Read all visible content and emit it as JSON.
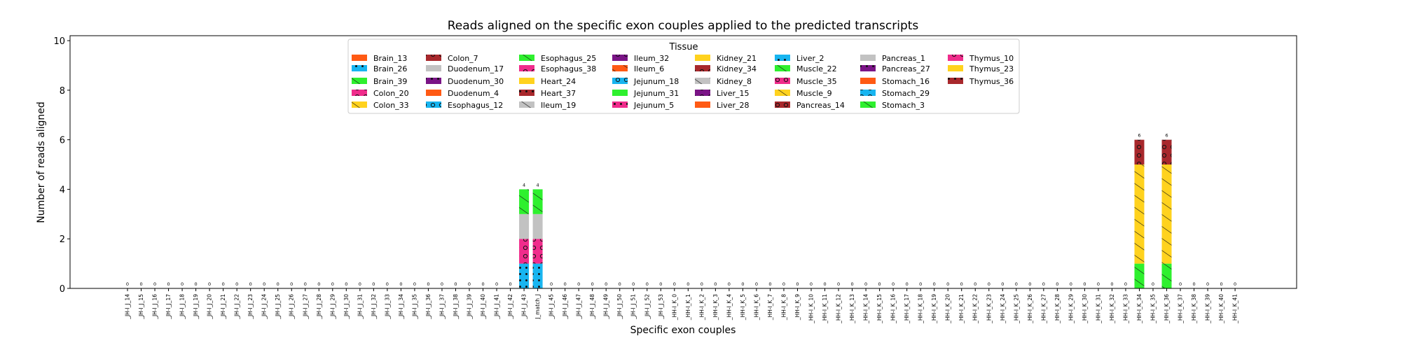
{
  "chart_data": {
    "type": "bar",
    "stacked": true,
    "title": "Reads aligned on the specific exon couples applied to the predicted transcripts",
    "xlabel": "Specific exon couples",
    "ylabel": "Number of reads aligned",
    "ylim": [
      0,
      10.2
    ],
    "yticks": [
      0,
      2,
      4,
      6,
      8,
      10
    ],
    "grid": false,
    "legend": {
      "title": "Tissue",
      "placement": "top-center",
      "columns": 8,
      "entries": [
        {
          "label": "Brain_13",
          "color": "#ff5a14",
          "hatch": "none"
        },
        {
          "label": "Brain_26",
          "color": "#18b5f0",
          "hatch": "dots"
        },
        {
          "label": "Brain_39",
          "color": "#2ef02e",
          "hatch": "slash"
        },
        {
          "label": "Colon_20",
          "color": "#f02c8c",
          "hatch": "circles"
        },
        {
          "label": "Colon_33",
          "color": "#ffd21e",
          "hatch": "slash"
        },
        {
          "label": "Colon_7",
          "color": "#a8282c",
          "hatch": "circles"
        },
        {
          "label": "Duodenum_17",
          "color": "#c2c2c2",
          "hatch": "none"
        },
        {
          "label": "Duodenum_30",
          "color": "#7a1486",
          "hatch": "dots"
        },
        {
          "label": "Duodenum_4",
          "color": "#ff5a14",
          "hatch": "none"
        },
        {
          "label": "Esophagus_12",
          "color": "#18b5f0",
          "hatch": "circles"
        },
        {
          "label": "Esophagus_25",
          "color": "#2ef02e",
          "hatch": "slash"
        },
        {
          "label": "Esophagus_38",
          "color": "#f02c8c",
          "hatch": "circles"
        },
        {
          "label": "Heart_24",
          "color": "#ffd21e",
          "hatch": "none"
        },
        {
          "label": "Heart_37",
          "color": "#a8282c",
          "hatch": "dots"
        },
        {
          "label": "Ileum_19",
          "color": "#c2c2c2",
          "hatch": "slash"
        },
        {
          "label": "Ileum_32",
          "color": "#7a1486",
          "hatch": "circles"
        },
        {
          "label": "Ileum_6",
          "color": "#ff5a14",
          "hatch": "slash"
        },
        {
          "label": "Jejunum_18",
          "color": "#18b5f0",
          "hatch": "circles"
        },
        {
          "label": "Jejunum_31",
          "color": "#2ef02e",
          "hatch": "none"
        },
        {
          "label": "Jejunum_5",
          "color": "#f02c8c",
          "hatch": "dots"
        },
        {
          "label": "Kidney_21",
          "color": "#ffd21e",
          "hatch": "none"
        },
        {
          "label": "Kidney_34",
          "color": "#a8282c",
          "hatch": "circles"
        },
        {
          "label": "Kidney_8",
          "color": "#c2c2c2",
          "hatch": "slash"
        },
        {
          "label": "Liver_15",
          "color": "#7a1486",
          "hatch": "circles"
        },
        {
          "label": "Liver_28",
          "color": "#ff5a14",
          "hatch": "none"
        },
        {
          "label": "Liver_2",
          "color": "#18b5f0",
          "hatch": "dots"
        },
        {
          "label": "Muscle_22",
          "color": "#2ef02e",
          "hatch": "slash"
        },
        {
          "label": "Muscle_35",
          "color": "#f02c8c",
          "hatch": "circles"
        },
        {
          "label": "Muscle_9",
          "color": "#ffd21e",
          "hatch": "slash"
        },
        {
          "label": "Pancreas_14",
          "color": "#a8282c",
          "hatch": "circles"
        },
        {
          "label": "Pancreas_1",
          "color": "#c2c2c2",
          "hatch": "none"
        },
        {
          "label": "Pancreas_27",
          "color": "#7a1486",
          "hatch": "dots"
        },
        {
          "label": "Stomach_16",
          "color": "#ff5a14",
          "hatch": "none"
        },
        {
          "label": "Stomach_29",
          "color": "#18b5f0",
          "hatch": "circles"
        },
        {
          "label": "Stomach_3",
          "color": "#2ef02e",
          "hatch": "slash"
        },
        {
          "label": "Thymus_10",
          "color": "#f02c8c",
          "hatch": "circles"
        },
        {
          "label": "Thymus_23",
          "color": "#ffd21e",
          "hatch": "none"
        },
        {
          "label": "Thymus_36",
          "color": "#a8282c",
          "hatch": "dots"
        }
      ]
    },
    "categories": [
      "_JH-I_J_14",
      "_JH-I_J_15",
      "_JH-I_J_16",
      "_JH-I_J_17",
      "_JH-I_J_18",
      "_JH-I_J_19",
      "_JH-I_J_20",
      "_JH-I_J_21",
      "_JH-I_J_22",
      "_JH-I_J_23",
      "_JH-I_J_24",
      "_JH-I_J_25",
      "_JH-I_J_26",
      "_JH-I_J_27",
      "_JH-I_J_28",
      "_JH-I_J_29",
      "_JH-I_J_30",
      "_JH-I_J_31",
      "_JH-I_J_32",
      "_JH-I_J_33",
      "_JH-I_J_34",
      "_JH-I_J_35",
      "_JH-I_J_36",
      "_JH-I_J_37",
      "_JH-I_J_38",
      "_JH-I_J_39",
      "_JH-I_J_40",
      "_JH-I_J_41",
      "_JH-I_J_42",
      "_JH-I_J_43",
      "J_match_J",
      "_JH-I_J_45",
      "_JH-I_J_46",
      "_JH-I_J_47",
      "_JH-I_J_48",
      "_JH-I_J_49",
      "_JH-I_J_50",
      "_JH-I_J_51",
      "_JH-I_J_52",
      "_JH-I_J_53",
      "_HH-I_K_0",
      "_HH-I_K_1",
      "_HH-I_K_2",
      "_HH-I_K_3",
      "_HH-I_K_4",
      "_HH-I_K_5",
      "_HH-I_K_6",
      "_HH-I_K_7",
      "_HH-I_K_8",
      "_HH-I_K_9",
      "_HH-I_K_10",
      "_HH-I_K_11",
      "_HH-I_K_12",
      "_HH-I_K_13",
      "_HH-I_K_14",
      "_HH-I_K_15",
      "_HH-I_K_16",
      "_HH-I_K_17",
      "_HH-I_K_18",
      "_HH-I_K_19",
      "_HH-I_K_20",
      "_HH-I_K_21",
      "_HH-I_K_22",
      "_HH-I_K_23",
      "_HH-I_K_24",
      "_HH-I_K_25",
      "_HH-I_K_26",
      "_HH-I_K_27",
      "_HH-I_K_28",
      "_HH-I_K_29",
      "_HH-I_K_30",
      "_HH-I_K_31",
      "_HH-I_K_32",
      "_HH-I_K_33",
      "_HH-I_K_34",
      "_HH-I_K_35",
      "_HH-I_K_36",
      "_HH-I_K_37",
      "_HH-I_K_38",
      "_HH-I_K_39",
      "_HH-I_K_40",
      "_HH-I_K_41"
    ],
    "totals": [
      0,
      0,
      0,
      0,
      0,
      0,
      0,
      0,
      0,
      0,
      0,
      0,
      0,
      0,
      0,
      0,
      0,
      0,
      0,
      0,
      0,
      0,
      0,
      0,
      0,
      0,
      0,
      0,
      0,
      4,
      4,
      0,
      0,
      0,
      0,
      0,
      0,
      0,
      0,
      0,
      0,
      0,
      0,
      0,
      0,
      0,
      0,
      0,
      0,
      0,
      0,
      0,
      0,
      0,
      0,
      0,
      0,
      0,
      0,
      0,
      0,
      0,
      0,
      0,
      0,
      0,
      0,
      0,
      0,
      0,
      0,
      0,
      0,
      0,
      6,
      0,
      6,
      0,
      0,
      0,
      0,
      0
    ],
    "stacks": [
      {
        "category": "_JH-I_J_43",
        "segments": [
          {
            "tissue": "Brain_26",
            "value": 1
          },
          {
            "tissue": "Colon_20",
            "value": 1
          },
          {
            "tissue": "Duodenum_17",
            "value": 1
          },
          {
            "tissue": "Esophagus_25",
            "value": 1
          }
        ]
      },
      {
        "category": "J_match_J",
        "segments": [
          {
            "tissue": "Brain_26",
            "value": 1
          },
          {
            "tissue": "Colon_20",
            "value": 1
          },
          {
            "tissue": "Duodenum_17",
            "value": 1
          },
          {
            "tissue": "Esophagus_25",
            "value": 1
          }
        ]
      },
      {
        "category": "_HH-I_K_34",
        "segments": [
          {
            "tissue": "Brain_39",
            "value": 1
          },
          {
            "tissue": "Colon_33",
            "value": 4
          },
          {
            "tissue": "Colon_7",
            "value": 1
          }
        ]
      },
      {
        "category": "_HH-I_K_36",
        "segments": [
          {
            "tissue": "Brain_39",
            "value": 1
          },
          {
            "tissue": "Colon_33",
            "value": 4
          },
          {
            "tissue": "Colon_7",
            "value": 1
          }
        ]
      }
    ]
  }
}
